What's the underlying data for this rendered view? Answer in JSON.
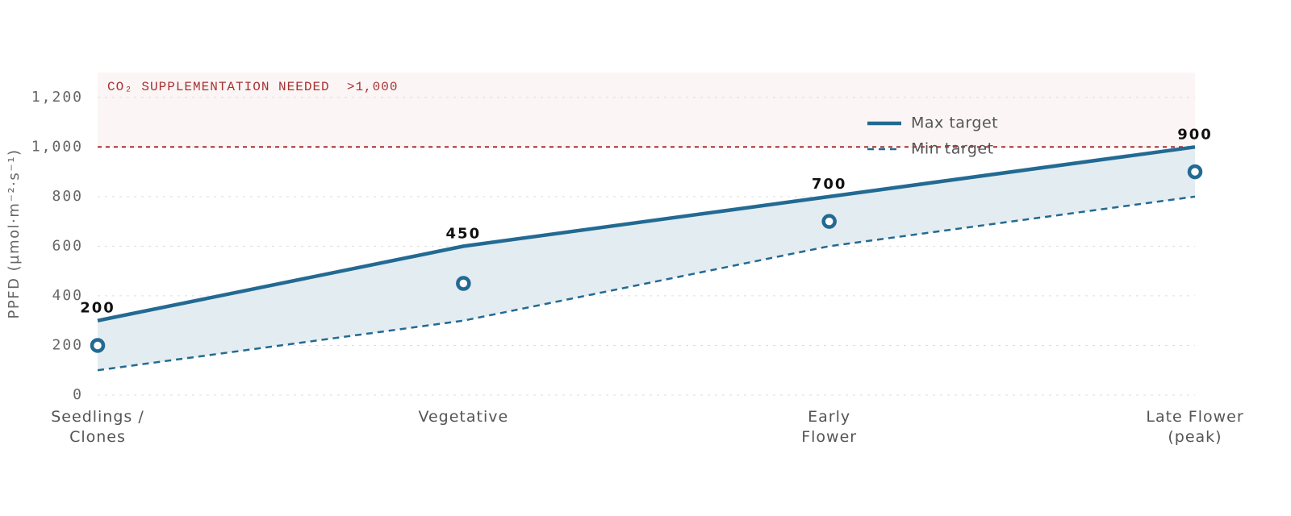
{
  "chart_data": {
    "type": "line",
    "y_label": "PPFD (µmol·m⁻²·s⁻¹)",
    "categories": [
      "Seedlings /\nClones",
      "Vegetative",
      "Early\nFlower",
      "Late Flower\n(peak)"
    ],
    "series": [
      {
        "name": "Max target",
        "color": "#236a93",
        "values": [
          300,
          600,
          800,
          1000
        ],
        "style": "solid"
      },
      {
        "name": "Min target",
        "color": "#236a93",
        "values": [
          100,
          300,
          600,
          800
        ],
        "style": "dashed"
      }
    ],
    "values": [
      200,
      450,
      700,
      900
    ],
    "band_color": "#e3ecf0",
    "threshold": {
      "value": 1000,
      "label": "CO₂ SUPPLEMENTATION NEEDED  >1,000",
      "color": "#a83232"
    },
    "ylim": [
      0,
      1300
    ],
    "yticks": [
      0,
      200,
      400,
      600,
      800,
      {
        "value": 1000,
        "label": "1,000"
      },
      {
        "value": 1200,
        "label": "1,200"
      }
    ],
    "grid": true
  }
}
